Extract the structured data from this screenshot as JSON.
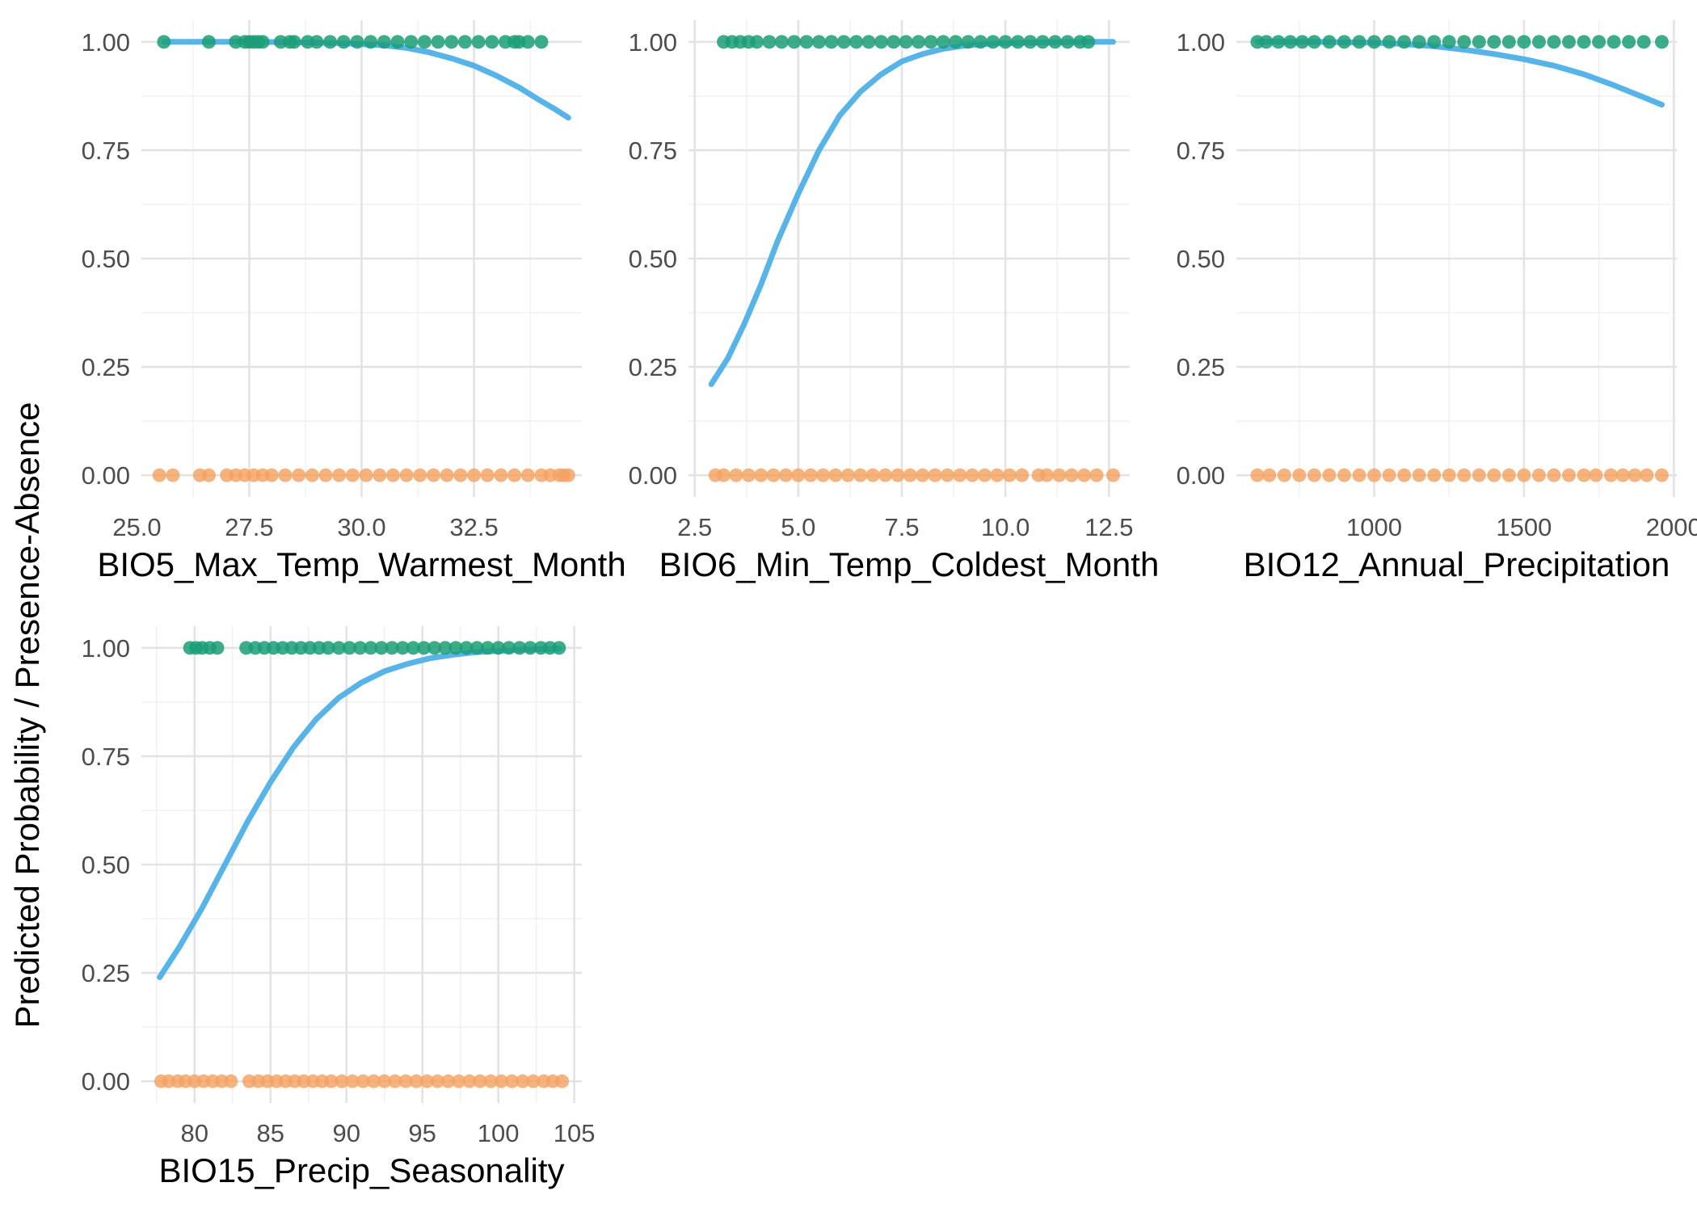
{
  "figure": {
    "y_label": "Predicted Probability / Presence-Absence",
    "colors": {
      "presence": "#1b9e77",
      "absence": "#f4a261",
      "fit": "#56b4e9",
      "grid": "#e3e3e3"
    }
  },
  "chart_data": [
    {
      "type": "scatter",
      "title": "",
      "xlabel": "BIO5_Max_Temp_Warmest_Month",
      "ylabel": "Predicted Probability / Presence-Absence",
      "xlim": [
        25.1,
        34.9
      ],
      "ylim": [
        -0.05,
        1.05
      ],
      "x_ticks": [
        25,
        27.5,
        30,
        32.5
      ],
      "x_tick_labels": [
        "25.0",
        "27.5",
        "30.0",
        "32.5"
      ],
      "y_ticks": [
        0,
        0.25,
        0.5,
        0.75,
        1
      ],
      "y_tick_labels": [
        "0.00",
        "0.25",
        "0.50",
        "0.75",
        "1.00"
      ],
      "grid": true,
      "presence_x": [
        25.6,
        26.6,
        27.2,
        27.4,
        27.5,
        27.6,
        27.7,
        27.8,
        28.2,
        28.4,
        28.5,
        28.8,
        29.0,
        29.3,
        29.6,
        29.9,
        30.2,
        30.5,
        30.8,
        31.1,
        31.4,
        31.7,
        32.0,
        32.3,
        32.6,
        32.9,
        33.2,
        33.4,
        33.5,
        33.7,
        34.0
      ],
      "absence_x": [
        25.5,
        25.8,
        26.4,
        26.6,
        27.0,
        27.2,
        27.4,
        27.6,
        27.8,
        28.0,
        28.3,
        28.6,
        28.9,
        29.2,
        29.5,
        29.8,
        30.1,
        30.4,
        30.7,
        31.0,
        31.3,
        31.6,
        31.9,
        32.2,
        32.5,
        32.8,
        33.1,
        33.4,
        33.7,
        34.0,
        34.2,
        34.4,
        34.5,
        34.6
      ],
      "fit": {
        "x": [
          25.6,
          26.5,
          27.5,
          28.5,
          29.5,
          30.5,
          31.0,
          31.5,
          32.0,
          32.5,
          33.0,
          33.5,
          34.0,
          34.3,
          34.6
        ],
        "y": [
          1.0,
          1.0,
          1.0,
          0.999,
          0.997,
          0.992,
          0.986,
          0.976,
          0.962,
          0.945,
          0.922,
          0.895,
          0.863,
          0.845,
          0.825
        ]
      }
    },
    {
      "type": "scatter",
      "title": "",
      "xlabel": "BIO6_Min_Temp_Coldest_Month",
      "ylabel": "Predicted Probability / Presence-Absence",
      "xlim": [
        2.35,
        13.0
      ],
      "ylim": [
        -0.05,
        1.05
      ],
      "x_ticks": [
        2.5,
        5,
        7.5,
        10,
        12.5
      ],
      "x_tick_labels": [
        "2.5",
        "5.0",
        "7.5",
        "10.0",
        "12.5"
      ],
      "y_ticks": [
        0,
        0.25,
        0.5,
        0.75,
        1
      ],
      "y_tick_labels": [
        "0.00",
        "0.25",
        "0.50",
        "0.75",
        "1.00"
      ],
      "grid": true,
      "presence_x": [
        3.2,
        3.4,
        3.6,
        3.8,
        4.0,
        4.3,
        4.6,
        4.9,
        5.2,
        5.5,
        5.8,
        6.1,
        6.4,
        6.7,
        7.0,
        7.3,
        7.6,
        7.9,
        8.2,
        8.5,
        8.8,
        9.1,
        9.4,
        9.7,
        10.0,
        10.3,
        10.6,
        10.9,
        11.2,
        11.5,
        11.8,
        12.0
      ],
      "absence_x": [
        3.0,
        3.2,
        3.5,
        3.8,
        4.1,
        4.4,
        4.7,
        5.0,
        5.3,
        5.6,
        5.9,
        6.2,
        6.5,
        6.8,
        7.1,
        7.4,
        7.7,
        8.0,
        8.3,
        8.6,
        8.9,
        9.2,
        9.5,
        9.8,
        10.1,
        10.4,
        10.8,
        11.0,
        11.3,
        11.6,
        11.9,
        12.2,
        12.6
      ],
      "fit": {
        "x": [
          2.9,
          3.3,
          3.7,
          4.1,
          4.5,
          5.0,
          5.5,
          6.0,
          6.5,
          7.0,
          7.5,
          8.0,
          8.5,
          9.0,
          9.5,
          10.0,
          11.0,
          12.0,
          12.6
        ],
        "y": [
          0.21,
          0.27,
          0.35,
          0.44,
          0.54,
          0.65,
          0.75,
          0.83,
          0.885,
          0.925,
          0.955,
          0.972,
          0.984,
          0.991,
          0.995,
          0.997,
          0.999,
          1.0,
          1.0
        ]
      }
    },
    {
      "type": "scatter",
      "title": "",
      "xlabel": "BIO12_Annual_Precipitation",
      "ylabel": "Predicted Probability / Presence-Absence",
      "xlim": [
        540,
        2010
      ],
      "ylim": [
        -0.05,
        1.05
      ],
      "x_ticks": [
        1000,
        1500,
        2000
      ],
      "x_tick_labels": [
        "1000",
        "1500",
        "2000"
      ],
      "y_ticks": [
        0,
        0.25,
        0.5,
        0.75,
        1
      ],
      "y_tick_labels": [
        "0.00",
        "0.25",
        "0.50",
        "0.75",
        "1.00"
      ],
      "grid": true,
      "presence_x": [
        610,
        640,
        680,
        720,
        760,
        800,
        850,
        900,
        950,
        1000,
        1050,
        1100,
        1150,
        1200,
        1250,
        1300,
        1350,
        1400,
        1450,
        1500,
        1550,
        1600,
        1650,
        1700,
        1750,
        1800,
        1850,
        1900,
        1960
      ],
      "absence_x": [
        610,
        650,
        700,
        750,
        800,
        850,
        900,
        950,
        1000,
        1050,
        1100,
        1150,
        1200,
        1250,
        1300,
        1350,
        1400,
        1450,
        1500,
        1550,
        1600,
        1650,
        1700,
        1740,
        1790,
        1830,
        1870,
        1910,
        1960
      ],
      "fit": {
        "x": [
          610,
          800,
          1000,
          1100,
          1200,
          1300,
          1400,
          1500,
          1600,
          1700,
          1800,
          1900,
          1960
        ],
        "y": [
          1.0,
          1.0,
          0.998,
          0.995,
          0.99,
          0.982,
          0.972,
          0.96,
          0.945,
          0.925,
          0.9,
          0.872,
          0.855
        ]
      }
    },
    {
      "type": "scatter",
      "title": "",
      "xlabel": "BIO15_Precip_Seasonality",
      "ylabel": "Predicted Probability / Presence-Absence",
      "xlim": [
        76.5,
        105.5
      ],
      "ylim": [
        -0.05,
        1.05
      ],
      "x_ticks": [
        80,
        85,
        90,
        95,
        100,
        105
      ],
      "x_tick_labels": [
        "80",
        "85",
        "90",
        "95",
        "100",
        "105"
      ],
      "y_ticks": [
        0,
        0.25,
        0.5,
        0.75,
        1
      ],
      "y_tick_labels": [
        "0.00",
        "0.25",
        "0.50",
        "0.75",
        "1.00"
      ],
      "grid": true,
      "presence_x": [
        79.7,
        80.1,
        80.5,
        81.0,
        81.5,
        83.4,
        84.0,
        84.6,
        85.2,
        85.8,
        86.4,
        87.0,
        87.6,
        88.2,
        88.8,
        89.5,
        90.2,
        90.9,
        91.6,
        92.3,
        93.0,
        93.7,
        94.4,
        95.1,
        95.8,
        96.5,
        97.2,
        97.9,
        98.6,
        99.3,
        100.0,
        100.7,
        101.4,
        102.1,
        102.8,
        103.4,
        104.0
      ],
      "absence_x": [
        77.8,
        78.3,
        78.9,
        79.4,
        80.0,
        80.6,
        81.2,
        81.8,
        82.4,
        83.6,
        84.2,
        84.8,
        85.4,
        86.0,
        86.6,
        87.2,
        87.8,
        88.4,
        89.0,
        89.7,
        90.4,
        91.1,
        91.8,
        92.5,
        93.2,
        93.9,
        94.6,
        95.3,
        96.0,
        96.7,
        97.4,
        98.1,
        98.8,
        99.5,
        100.2,
        100.9,
        101.6,
        102.3,
        103.0,
        103.6,
        104.2
      ],
      "fit": {
        "x": [
          77.7,
          79,
          80.5,
          82,
          83.5,
          85,
          86.5,
          88,
          89.5,
          91,
          92.5,
          94,
          95.5,
          97,
          98.5,
          100,
          101.5,
          103,
          104
        ],
        "y": [
          0.24,
          0.31,
          0.4,
          0.5,
          0.6,
          0.69,
          0.77,
          0.835,
          0.885,
          0.92,
          0.946,
          0.963,
          0.976,
          0.984,
          0.99,
          0.993,
          0.996,
          0.997,
          0.998
        ]
      }
    }
  ]
}
